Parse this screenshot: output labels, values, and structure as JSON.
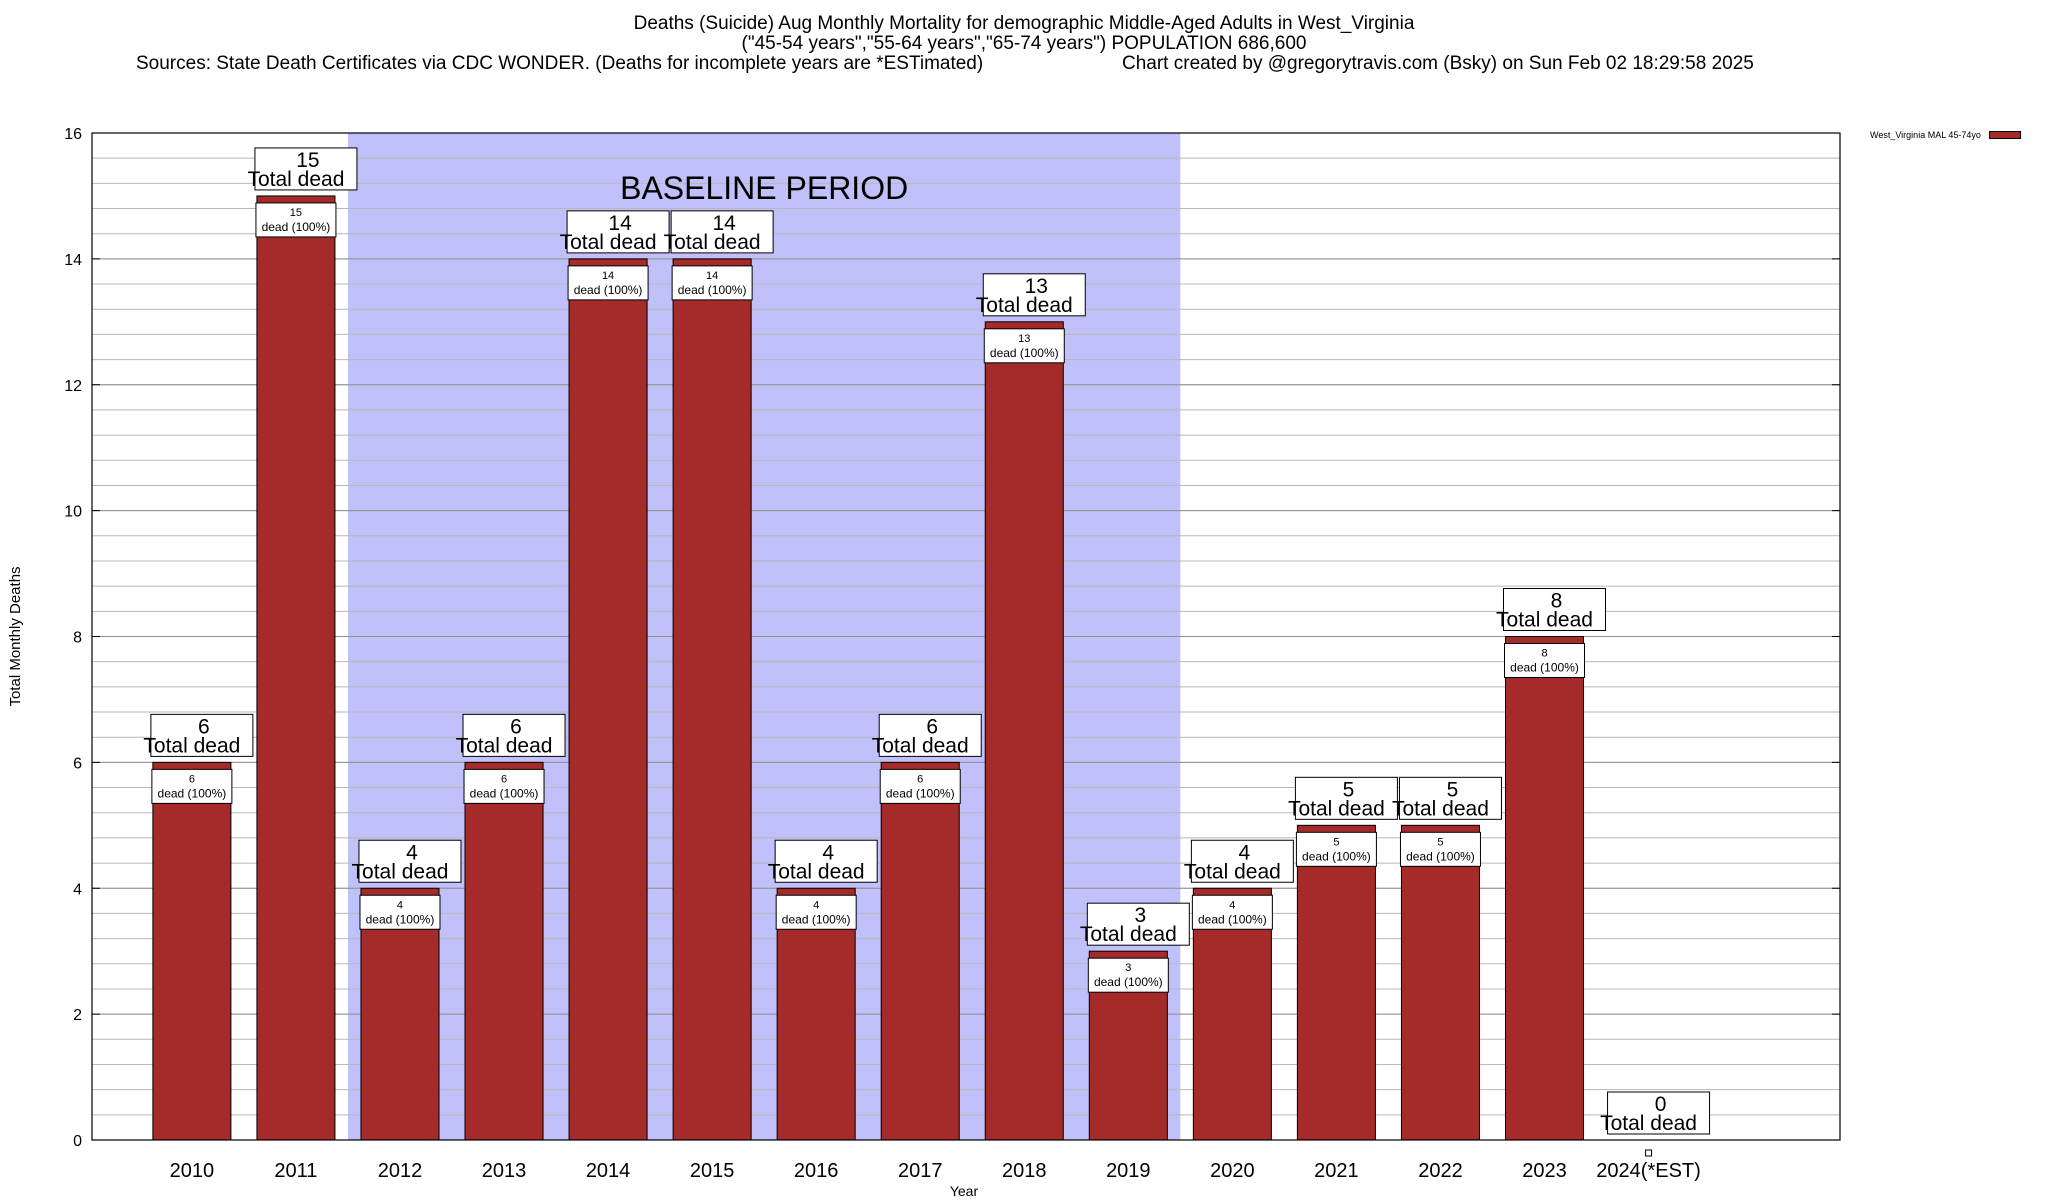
{
  "header": {
    "title": "Deaths (Suicide) Aug Monthly Mortality for demographic Middle-Aged Adults in West_Virginia",
    "subtitle": "(\"45-54 years\",\"55-64 years\",\"65-74 years\") POPULATION 686,600",
    "sources": "Sources: State Death Certificates via CDC WONDER. (Deaths for incomplete years are *ESTimated)",
    "credit": "Chart created by @gregorytravis.com (Bsky) on Sun Feb 02 18:29:58 2025"
  },
  "legend": {
    "label": "West_Virginia MAL 45-74yo",
    "color": "#a52a2a"
  },
  "colors": {
    "bar": "#a52a2a",
    "baseline": "#c0c0fa"
  },
  "chart_data": {
    "type": "bar",
    "categories": [
      "2010",
      "2011",
      "2012",
      "2013",
      "2014",
      "2015",
      "2016",
      "2017",
      "2018",
      "2019",
      "2020",
      "2021",
      "2022",
      "2023",
      "2024(*EST)"
    ],
    "values": [
      6,
      15,
      4,
      6,
      14,
      14,
      4,
      6,
      13,
      3,
      4,
      5,
      5,
      8,
      0
    ],
    "total_label": "Total dead",
    "inner_label": "dead (100%)",
    "xlabel": "Year",
    "ylabel": "Total Monthly Deaths",
    "ylim": [
      0,
      16
    ],
    "yticks": [
      0,
      2,
      4,
      6,
      8,
      10,
      12,
      14,
      16
    ],
    "grid": true,
    "legend_position": "top-right",
    "baseline": {
      "label": "BASELINE PERIOD",
      "from": "2012",
      "to": "2019"
    }
  }
}
